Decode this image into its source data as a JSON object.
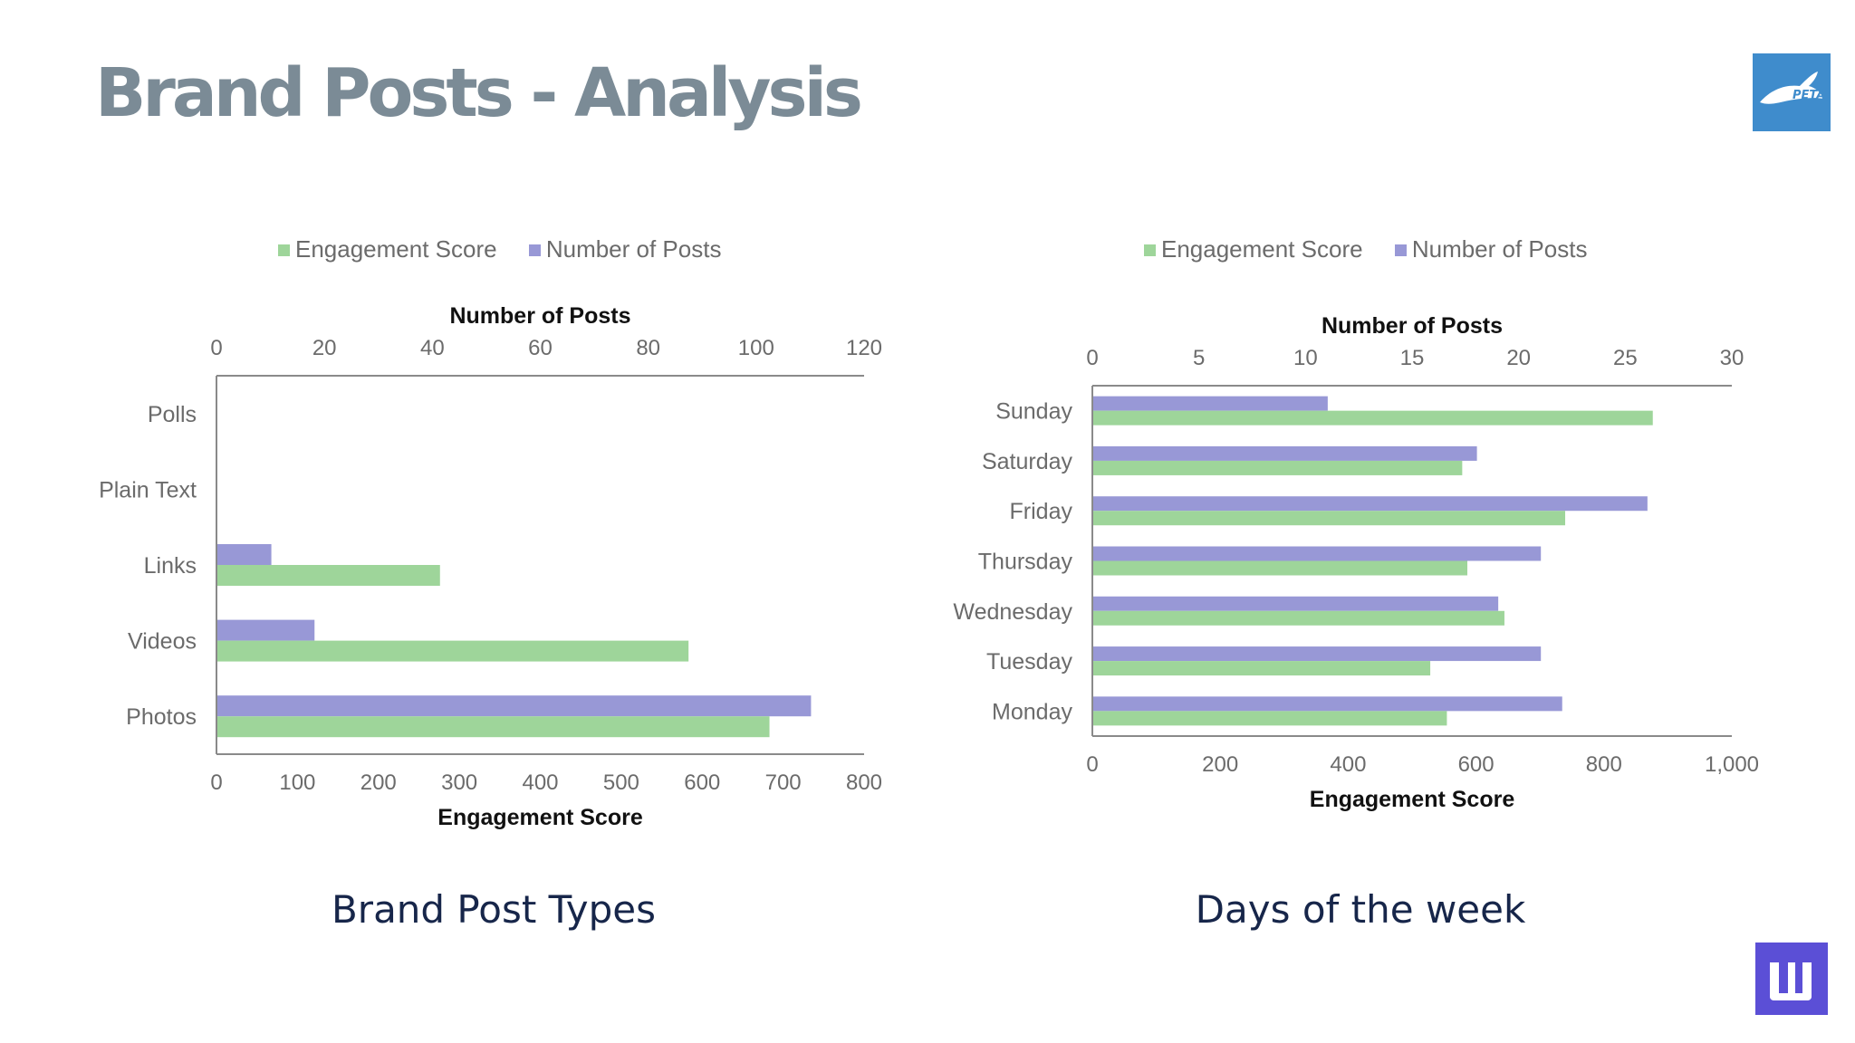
{
  "slide": {
    "title": "Brand Posts - Analysis",
    "logo_top_text": "PETA"
  },
  "colors": {
    "engagement": "#9ed59a",
    "posts": "#9898d6",
    "axis": "#8a8a8a",
    "title": "#7b8b96",
    "caption": "#17264a",
    "logo_top_bg": "#3f8ccc",
    "logo_bottom_bg": "#5b4fd6"
  },
  "chart_data": [
    {
      "type": "bar",
      "orientation": "horizontal",
      "caption": "Brand Post Types",
      "legend": [
        "Engagement Score",
        "Number of Posts"
      ],
      "legend_position": "top",
      "categories": [
        "Polls",
        "Plain Text",
        "Links",
        "Videos",
        "Photos"
      ],
      "series": [
        {
          "name": "Number of Posts",
          "axis": "top",
          "values": [
            0,
            0,
            10,
            18,
            110
          ]
        },
        {
          "name": "Engagement Score",
          "axis": "bottom",
          "values": [
            0,
            0,
            275,
            582,
            682
          ]
        }
      ],
      "top_axis": {
        "label": "Number of Posts",
        "range": [
          0,
          120
        ],
        "ticks": [
          "0",
          "20",
          "40",
          "60",
          "80",
          "100",
          "120"
        ]
      },
      "bottom_axis": {
        "label": "Engagement Score",
        "range": [
          0,
          800
        ],
        "ticks": [
          "0",
          "100",
          "200",
          "300",
          "400",
          "500",
          "600",
          "700",
          "800"
        ]
      },
      "grid": false
    },
    {
      "type": "bar",
      "orientation": "horizontal",
      "caption": "Days of the week",
      "legend": [
        "Engagement Score",
        "Number of Posts"
      ],
      "legend_position": "top",
      "categories": [
        "Sunday",
        "Saturday",
        "Friday",
        "Thursday",
        "Wednesday",
        "Tuesday",
        "Monday"
      ],
      "series": [
        {
          "name": "Number of Posts",
          "axis": "top",
          "values": [
            11,
            18,
            26,
            21,
            19,
            21,
            22
          ]
        },
        {
          "name": "Engagement Score",
          "axis": "bottom",
          "values": [
            875,
            577,
            738,
            585,
            643,
            527,
            553
          ]
        }
      ],
      "top_axis": {
        "label": "Number of Posts",
        "range": [
          0,
          30
        ],
        "ticks": [
          "0",
          "5",
          "10",
          "15",
          "20",
          "25",
          "30"
        ]
      },
      "bottom_axis": {
        "label": "Engagement Score",
        "range": [
          0,
          1000
        ],
        "ticks": [
          "0",
          "200",
          "400",
          "600",
          "800",
          "1,000"
        ]
      },
      "grid": false
    }
  ]
}
